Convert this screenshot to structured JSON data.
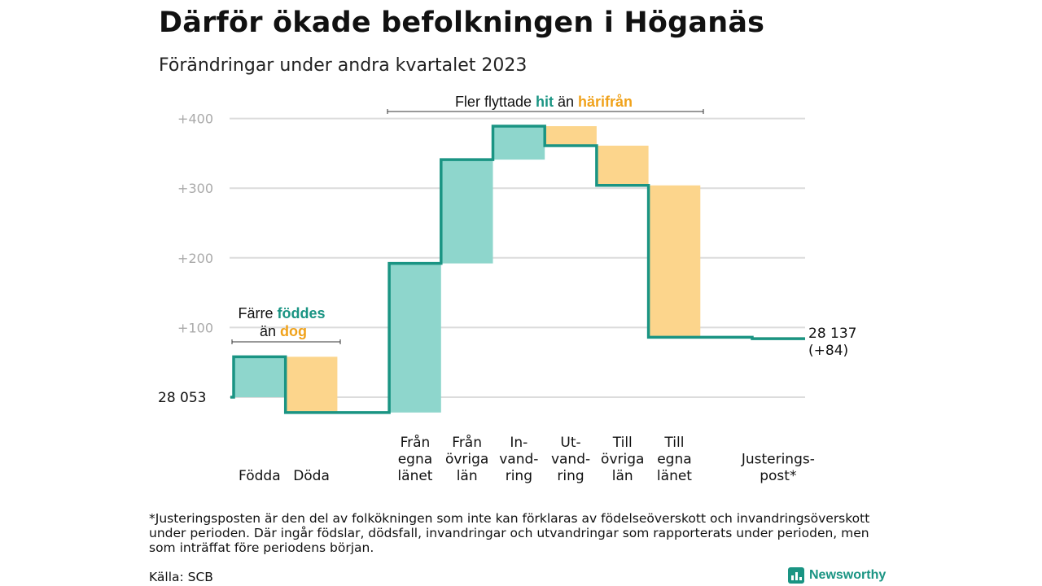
{
  "title": "Därför ökade befolkningen i Höganäs",
  "subtitle": "Förändringar under andra kvartalet 2023",
  "colors": {
    "increase": "#8ed6cc",
    "decrease": "#fcd58c",
    "line": "#1a9483",
    "teal_text": "#1a9483",
    "orange_text": "#f0a21b"
  },
  "chart_data": {
    "type": "bar",
    "subtype": "waterfall",
    "baseline_label": "28  053",
    "end_label": [
      "28 137",
      "(+84)"
    ],
    "start_value": 0,
    "yticks": [
      "+100",
      "+200",
      "+300",
      "+400"
    ],
    "ylim": [
      -25,
      410
    ],
    "grid": true,
    "steps": [
      {
        "label": [
          "Födda"
        ],
        "from": 0,
        "to": 58
      },
      {
        "label": [
          "Döda"
        ],
        "from": 58,
        "to": -22
      },
      {
        "label": [],
        "from": -22,
        "to": -22
      },
      {
        "label": [
          "Från",
          "egna",
          "länet"
        ],
        "from": -22,
        "to": 192
      },
      {
        "label": [
          "Från",
          "övriga",
          "län"
        ],
        "from": 192,
        "to": 341
      },
      {
        "label": [
          "In-",
          "vand-",
          "ring"
        ],
        "from": 341,
        "to": 389
      },
      {
        "label": [
          "Ut-",
          "vand-",
          "ring"
        ],
        "from": 389,
        "to": 361
      },
      {
        "label": [
          "Till",
          "övriga",
          "län"
        ],
        "from": 361,
        "to": 304
      },
      {
        "label": [
          "Till",
          "egna",
          "länet"
        ],
        "from": 304,
        "to": 86
      },
      {
        "label": [],
        "from": 86,
        "to": 86
      },
      {
        "label": [
          "Justerings-",
          "post*"
        ],
        "from": 86,
        "to": 84
      }
    ],
    "annotations": [
      {
        "parts": [
          "Färre ",
          "föddes"
        ],
        "line2": [
          "än ",
          "dog"
        ]
      },
      {
        "parts": [
          "Fler flyttade ",
          "hit",
          " än ",
          "härifrån"
        ]
      }
    ]
  },
  "footnote": "*Justeringsposten är den del av folkökningen som inte kan förklaras av födelseöverskott och invandringsöverskott under perioden. Där ingår födslar, dödsfall, invandringar och utvandringar som rapporterats under perioden, men som inträffat före periodens början.",
  "source": "Källa: SCB",
  "brand": "Newsworthy"
}
